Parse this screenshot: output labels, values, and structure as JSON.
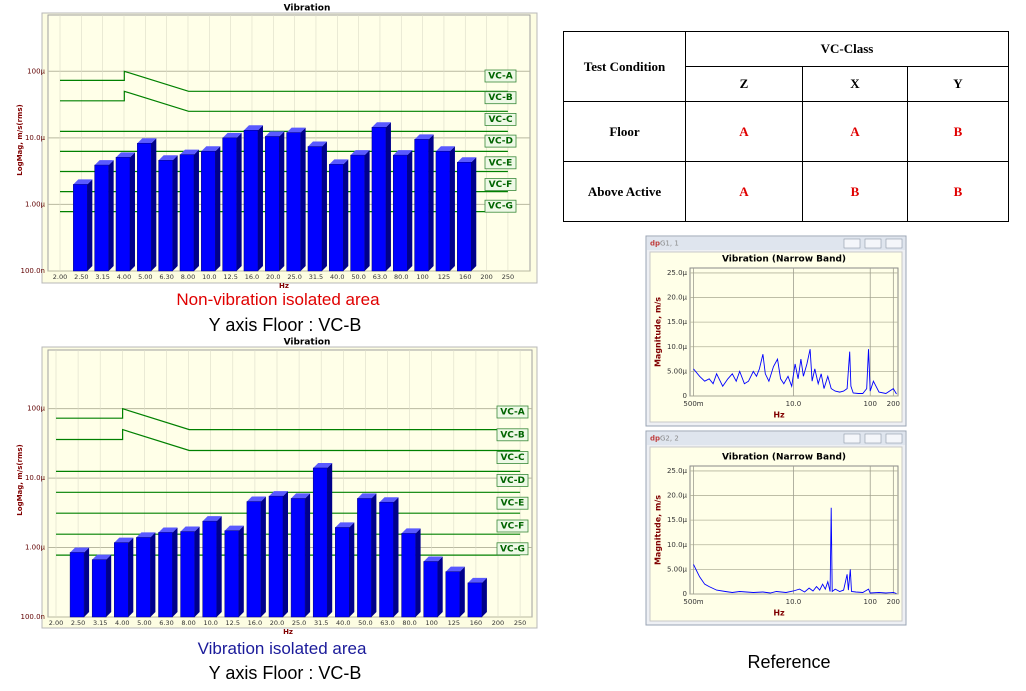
{
  "chart_data": [
    {
      "type": "bar",
      "title": "Vibration",
      "x_label": "Hz",
      "y_label": "LogMag, m/s(rms)",
      "log_y": true,
      "color": "#0000ff",
      "categories": [
        "2.00",
        "2.50",
        "3.15",
        "4.00",
        "5.00",
        "6.30",
        "8.00",
        "10.0",
        "12.5",
        "16.0",
        "20.0",
        "25.0",
        "31.5",
        "40.0",
        "50.0",
        "63.0",
        "80.0",
        "100",
        "125",
        "160",
        "200",
        "250"
      ],
      "values": [
        null,
        2e-06,
        3.9e-06,
        5.1e-06,
        8.3e-06,
        4.6e-06,
        5.6e-06,
        6.3e-06,
        1e-05,
        1.3e-05,
        1.05e-05,
        1.2e-05,
        7.4e-06,
        4e-06,
        5.5e-06,
        1.44e-05,
        5.5e-06,
        9.5e-06,
        6.3e-06,
        4.3e-06,
        null,
        null
      ],
      "ylim": [
        1e-07,
        0.0007
      ],
      "yticks": [
        {
          "value": 1e-07,
          "label": "100.0n"
        },
        {
          "value": 1e-06,
          "label": "1.00µ"
        },
        {
          "value": 1e-05,
          "label": "10.0µ"
        },
        {
          "value": 0.0001,
          "label": "100µ"
        }
      ],
      "grid": true,
      "reference_color": "#008000",
      "reference_lines": [
        {
          "name": "VC-A",
          "x": [
            2,
            4,
            4,
            8,
            250
          ],
          "values": [
            7.3e-05,
            7.3e-05,
            0.0001,
            5e-05,
            5e-05
          ]
        },
        {
          "name": "VC-B",
          "x": [
            2,
            4,
            4,
            8,
            250
          ],
          "values": [
            3.6e-05,
            3.6e-05,
            5e-05,
            2.5e-05,
            2.5e-05
          ]
        },
        {
          "name": "VC-C",
          "x": [
            2,
            250
          ],
          "values": [
            1.25e-05,
            1.25e-05
          ]
        },
        {
          "name": "VC-D",
          "x": [
            2,
            250
          ],
          "values": [
            6.25e-06,
            6.25e-06
          ]
        },
        {
          "name": "VC-E",
          "x": [
            2,
            250
          ],
          "values": [
            3.12e-06,
            3.12e-06
          ]
        },
        {
          "name": "VC-F",
          "x": [
            2,
            250
          ],
          "values": [
            1.56e-06,
            1.56e-06
          ]
        },
        {
          "name": "VC-G",
          "x": [
            2,
            250
          ],
          "values": [
            7.8e-07,
            7.8e-07
          ]
        }
      ]
    },
    {
      "type": "bar",
      "title": "Vibration",
      "x_label": "Hz",
      "y_label": "LogMag, m/s(rms)",
      "log_y": true,
      "color": "#0000ff",
      "categories": [
        "2.00",
        "2.50",
        "3.15",
        "4.00",
        "5.00",
        "6.30",
        "8.00",
        "10.0",
        "12.5",
        "16.0",
        "20.0",
        "25.0",
        "31.5",
        "40.0",
        "50.0",
        "63.0",
        "80.0",
        "100",
        "125",
        "160",
        "200",
        "250"
      ],
      "values": [
        null,
        8.5e-07,
        6.7e-07,
        1.18e-06,
        1.4e-06,
        1.65e-06,
        1.7e-06,
        2.4e-06,
        1.75e-06,
        4.6e-06,
        5.5e-06,
        5.1e-06,
        1.4e-05,
        1.95e-06,
        5.1e-06,
        4.5e-06,
        1.6e-06,
        6.3e-07,
        4.5e-07,
        3.1e-07,
        null,
        null
      ],
      "ylim": [
        1e-07,
        0.0007
      ],
      "yticks": [
        {
          "value": 1e-07,
          "label": "100.0n"
        },
        {
          "value": 1e-06,
          "label": "1.00µ"
        },
        {
          "value": 1e-05,
          "label": "10.0µ"
        },
        {
          "value": 0.0001,
          "label": "100µ"
        }
      ],
      "grid": true,
      "reference_color": "#008000",
      "reference_lines": [
        {
          "name": "VC-A",
          "x": [
            2,
            4,
            4,
            8,
            250
          ],
          "values": [
            7.3e-05,
            7.3e-05,
            0.0001,
            5e-05,
            5e-05
          ]
        },
        {
          "name": "VC-B",
          "x": [
            2,
            4,
            4,
            8,
            250
          ],
          "values": [
            3.6e-05,
            3.6e-05,
            5e-05,
            2.5e-05,
            2.5e-05
          ]
        },
        {
          "name": "VC-C",
          "x": [
            2,
            250
          ],
          "values": [
            1.25e-05,
            1.25e-05
          ]
        },
        {
          "name": "VC-D",
          "x": [
            2,
            250
          ],
          "values": [
            6.25e-06,
            6.25e-06
          ]
        },
        {
          "name": "VC-E",
          "x": [
            2,
            250
          ],
          "values": [
            3.12e-06,
            3.12e-06
          ]
        },
        {
          "name": "VC-F",
          "x": [
            2,
            250
          ],
          "values": [
            1.56e-06,
            1.56e-06
          ]
        },
        {
          "name": "VC-G",
          "x": [
            2,
            250
          ],
          "values": [
            7.8e-07,
            7.8e-07
          ]
        }
      ]
    },
    {
      "type": "line",
      "window_title": "G1, 1",
      "title": "Vibration (Narrow Band)",
      "x_label": "Hz",
      "y_label": "Magnitude, m/s",
      "log_x": true,
      "color": "#0000ff",
      "grid": true,
      "x": [
        0.5,
        0.6,
        0.7,
        0.8,
        0.9,
        1.0,
        1.2,
        1.4,
        1.6,
        1.8,
        2.0,
        2.3,
        2.6,
        3.0,
        3.3,
        3.6,
        4.0,
        4.3,
        4.8,
        5.5,
        6.2,
        6.8,
        7.5,
        8.5,
        9.5,
        10.5,
        11.5,
        12.5,
        13.5,
        15,
        16.5,
        17.5,
        19,
        21,
        23,
        25,
        28,
        31,
        35,
        40,
        45,
        50,
        54,
        56,
        60,
        70,
        80,
        90,
        95,
        100,
        110,
        130,
        160,
        200,
        220
      ],
      "values": [
        5.5e-06,
        4e-06,
        3e-06,
        3.5e-06,
        2.5e-06,
        4.5e-06,
        2e-06,
        3.5e-06,
        4.5e-06,
        3e-06,
        5e-06,
        2.5e-06,
        3e-06,
        5e-06,
        4e-06,
        5.5e-06,
        8.5e-06,
        4.5e-06,
        3e-06,
        6e-06,
        7.5e-06,
        3.5e-06,
        2.5e-06,
        4e-06,
        2e-06,
        6.5e-06,
        3.5e-06,
        7.5e-06,
        4e-06,
        6.5e-06,
        9.5e-06,
        3e-06,
        5.5e-06,
        2.5e-06,
        4.5e-06,
        1.5e-06,
        4e-06,
        1.5e-06,
        1e-06,
        8e-07,
        1e-06,
        1.5e-06,
        9e-06,
        2e-06,
        6e-07,
        5e-07,
        5e-07,
        1.5e-06,
        9.5e-06,
        1e-06,
        3e-06,
        8e-07,
        5e-07,
        1.5e-06,
        4e-07
      ],
      "xlim": [
        0.45,
        230
      ],
      "xticks": [
        {
          "value": 0.5,
          "label": "500m"
        },
        {
          "value": 10,
          "label": "10.0"
        },
        100,
        200
      ],
      "ylim": [
        0,
        2.6e-05
      ],
      "yticks": [
        0,
        {
          "value": 5e-06,
          "label": "5.00µ"
        },
        {
          "value": 1e-05,
          "label": "10.0µ"
        },
        {
          "value": 1.5e-05,
          "label": "15.0µ"
        },
        {
          "value": 2e-05,
          "label": "20.0µ"
        },
        {
          "value": 2.5e-05,
          "label": "25.0µ"
        }
      ]
    },
    {
      "type": "line",
      "window_title": "G2, 2",
      "title": "Vibration (Narrow Band)",
      "x_label": "Hz",
      "y_label": "Magnitude, m/s",
      "log_x": true,
      "color": "#0000ff",
      "grid": true,
      "x": [
        0.5,
        0.6,
        0.7,
        0.8,
        1.0,
        1.3,
        1.6,
        2,
        3,
        4,
        5,
        6,
        8,
        10,
        12,
        14,
        16,
        18,
        20,
        22,
        24,
        26,
        28,
        30,
        31,
        32,
        35,
        40,
        45,
        50,
        52,
        55,
        57,
        65,
        80,
        95,
        100,
        130,
        160,
        200,
        220
      ],
      "values": [
        6e-06,
        3.5e-06,
        2e-06,
        1.5e-06,
        8e-07,
        5e-07,
        3e-07,
        5e-07,
        3e-07,
        4e-07,
        2e-07,
        5e-07,
        3e-07,
        6e-07,
        1e-06,
        4e-07,
        1.2e-06,
        6e-07,
        1.5e-06,
        8e-07,
        2e-06,
        1e-06,
        2.5e-06,
        5e-07,
        1.75e-05,
        5e-07,
        1e-06,
        5e-07,
        8e-07,
        4e-06,
        8e-07,
        5e-06,
        5e-07,
        4e-07,
        3e-07,
        1e-06,
        2e-07,
        3e-07,
        2e-07,
        3e-07,
        1e-07
      ],
      "xlim": [
        0.45,
        230
      ],
      "xticks": [
        {
          "value": 0.5,
          "label": "500m"
        },
        {
          "value": 10,
          "label": "10.0"
        },
        100,
        200
      ],
      "ylim": [
        0,
        2.6e-05
      ],
      "yticks": [
        0,
        {
          "value": 5e-06,
          "label": "5.00µ"
        },
        {
          "value": 1e-05,
          "label": "10.0µ"
        },
        {
          "value": 1.5e-05,
          "label": "15.0µ"
        },
        {
          "value": 2e-05,
          "label": "20.0µ"
        },
        {
          "value": 2.5e-05,
          "label": "25.0µ"
        }
      ]
    }
  ],
  "table": {
    "header": [
      "Test Condition",
      "VC-Class"
    ],
    "columns": [
      "Z",
      "X",
      "Y"
    ],
    "rows": [
      [
        "Floor",
        "A",
        "A",
        "B"
      ],
      [
        "Above Active",
        "A",
        "B",
        "B"
      ]
    ]
  },
  "captions": [
    "Non-vibration isolated area",
    "Y axis Floor : VC-B",
    "Vibration isolated area",
    "Y axis Floor : VC-B",
    "Reference"
  ]
}
